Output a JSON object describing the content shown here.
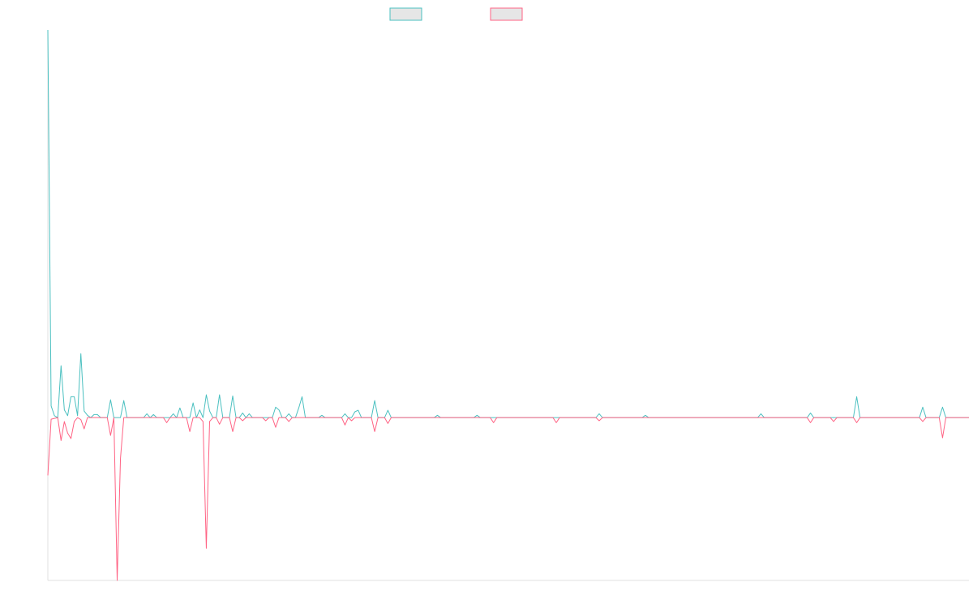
{
  "chart_data": {
    "type": "line",
    "series": [
      {
        "color": "#4bc0c0",
        "values": [
          100,
          3,
          0.5,
          0,
          13.4,
          2,
          0.5,
          5.4,
          5.4,
          0.5,
          16.5,
          1.7,
          0.6,
          0,
          0.8,
          0.8,
          0,
          0,
          0,
          4.6,
          0,
          0,
          0,
          4.4,
          0,
          0,
          0,
          0,
          0,
          0,
          1,
          0,
          0.8,
          0,
          0,
          0,
          0,
          0,
          1,
          0,
          2.5,
          0,
          0,
          0,
          3.8,
          0,
          2,
          0,
          5.9,
          1.7,
          0,
          0,
          5.9,
          0,
          0,
          0,
          5.6,
          0,
          0,
          1.2,
          0,
          1,
          0,
          0,
          0,
          0,
          0,
          0,
          0,
          2.7,
          2,
          0,
          0,
          1,
          0,
          0,
          2.5,
          5.4,
          0,
          0,
          0,
          0,
          0,
          0.6,
          0,
          0,
          0,
          0,
          0,
          0,
          1,
          0,
          0,
          1.5,
          1.9,
          0,
          0,
          0,
          0,
          4.4,
          0,
          0,
          0,
          1.9,
          0,
          0,
          0,
          0,
          0,
          0,
          0,
          0,
          0,
          0,
          0,
          0,
          0,
          0,
          0.6,
          0,
          0,
          0,
          0,
          0,
          0,
          0,
          0,
          0,
          0,
          0,
          0.6,
          0,
          0,
          0,
          0,
          0,
          0,
          0,
          0,
          0,
          0,
          0,
          0,
          0,
          0,
          0,
          0,
          0,
          0,
          0,
          0,
          0,
          0,
          0,
          0,
          0,
          0,
          0,
          0,
          0,
          0,
          0,
          0,
          0,
          0,
          0,
          0,
          1,
          0,
          0,
          0,
          0,
          0,
          0,
          0,
          0,
          0,
          0,
          0,
          0,
          0,
          0.6,
          0,
          0,
          0,
          0,
          0,
          0,
          0,
          0,
          0,
          0,
          0,
          0,
          0,
          0,
          0,
          0,
          0,
          0,
          0,
          0,
          0,
          0,
          0,
          0,
          0,
          0,
          0,
          0,
          0,
          0,
          0,
          0,
          0,
          0,
          1,
          0,
          0,
          0,
          0,
          0,
          0,
          0,
          0,
          0,
          0,
          0,
          0,
          0,
          0,
          1.2,
          0,
          0,
          0,
          0,
          0,
          0,
          0,
          0,
          0,
          0,
          0,
          0,
          0,
          5.4,
          0,
          0,
          0,
          0,
          0,
          0,
          0,
          0,
          0,
          0,
          0,
          0,
          0,
          0,
          0,
          0,
          0,
          0,
          0,
          2.7,
          0,
          0,
          0,
          0,
          0,
          2.7,
          0,
          0,
          0,
          0,
          0,
          0,
          0,
          0
        ]
      },
      {
        "color": "#ff6384",
        "values": [
          -14.9,
          -0.4,
          -0.2,
          0,
          -5.9,
          -1,
          -4,
          -5.4,
          -1,
          0,
          -0.5,
          -2.9,
          0,
          0,
          0,
          0,
          0,
          0,
          0,
          -4.6,
          0,
          -42,
          -10.5,
          0,
          0,
          0,
          0,
          0,
          0,
          0,
          0,
          0,
          0,
          0,
          0,
          0,
          -1.3,
          0,
          0,
          0,
          0,
          0,
          0,
          -3.6,
          0,
          0,
          0,
          -1,
          -33.7,
          -1,
          0,
          0,
          -1.7,
          0,
          0,
          0,
          -3.6,
          0,
          0,
          -0.8,
          0,
          0,
          0,
          0,
          0,
          0,
          -0.8,
          0,
          0,
          -2.5,
          0,
          0,
          0,
          -1,
          0,
          0,
          0,
          0,
          0,
          0,
          0,
          0,
          0,
          0,
          0,
          0,
          0,
          0,
          0,
          0,
          -1.9,
          0,
          -0.8,
          0,
          0,
          0,
          0,
          0,
          0,
          -3.6,
          0,
          0,
          0,
          -1.5,
          0,
          0,
          0,
          0,
          0,
          0,
          0,
          0,
          0,
          0,
          0,
          0,
          0,
          0,
          0,
          0,
          0,
          0,
          0,
          0,
          0,
          0,
          0,
          0,
          0,
          0,
          0,
          0,
          0,
          0,
          0,
          -1.3,
          0,
          0,
          0,
          0,
          0,
          0,
          0,
          0,
          0,
          0,
          0,
          0,
          0,
          0,
          0,
          0,
          0,
          0,
          -1.3,
          0,
          0,
          0,
          0,
          0,
          0,
          0,
          0,
          0,
          0,
          0,
          0,
          -0.8,
          0,
          0,
          0,
          0,
          0,
          0,
          0,
          0,
          0,
          0,
          0,
          0,
          0,
          0,
          0,
          0,
          0,
          0,
          0,
          0,
          0,
          0,
          0,
          0,
          0,
          0,
          0,
          0,
          0,
          0,
          0,
          0,
          0,
          0,
          0,
          0,
          0,
          0,
          0,
          0,
          0,
          0,
          0,
          0,
          0,
          0,
          0,
          0,
          0,
          0,
          0,
          0,
          0,
          0,
          0,
          0,
          0,
          0,
          0,
          0,
          0,
          0,
          0,
          -1.3,
          0,
          0,
          0,
          0,
          0,
          0,
          -1,
          0,
          0,
          0,
          0,
          0,
          0,
          -1.3,
          0,
          0,
          0,
          0,
          0,
          0,
          0,
          0,
          0,
          0,
          0,
          0,
          0,
          0,
          0,
          0,
          0,
          0,
          0,
          -1,
          0,
          0,
          0,
          0,
          0,
          -5.2,
          0,
          0,
          0,
          0,
          0,
          0,
          0,
          0
        ]
      }
    ],
    "ylim": [
      -42,
      100
    ]
  }
}
